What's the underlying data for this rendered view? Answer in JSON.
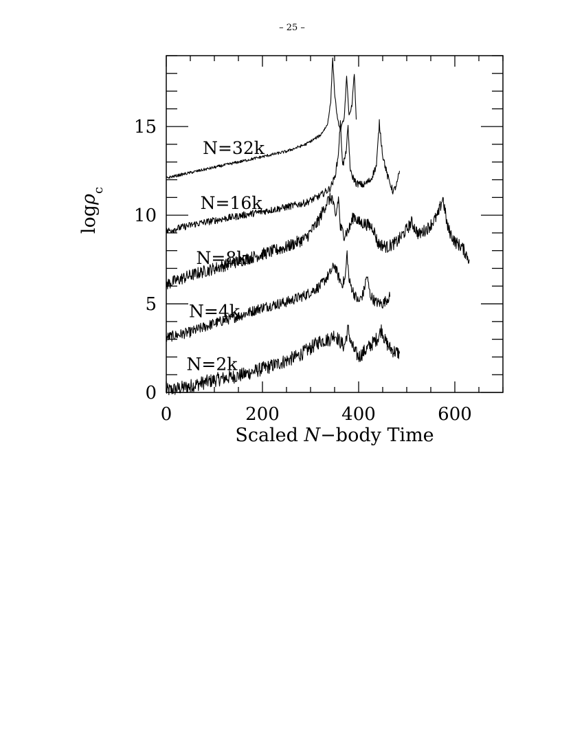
{
  "page": {
    "number": "– 25 –"
  },
  "chart_data": {
    "type": "line",
    "title": "",
    "xlabel_parts": [
      "Scaled ",
      "N",
      "−body Time"
    ],
    "ylabel_parts": [
      "log",
      "ρ",
      "c"
    ],
    "xlim": [
      0,
      700
    ],
    "ylim": [
      0,
      19
    ],
    "xticks": [
      0,
      200,
      400,
      600
    ],
    "yticks": [
      0,
      5,
      10,
      15
    ],
    "grid": false,
    "legend": "none (series labels drawn inline next to each curve)",
    "line_color": "#000000",
    "series": [
      {
        "name": "N=2k",
        "points": [
          [
            0,
            0.1
          ],
          [
            40,
            0.3
          ],
          [
            100,
            0.7
          ],
          [
            160,
            1.0
          ],
          [
            220,
            1.5
          ],
          [
            270,
            2.0
          ],
          [
            300,
            2.5
          ],
          [
            320,
            2.9
          ],
          [
            340,
            3.0
          ],
          [
            350,
            3.3
          ],
          [
            360,
            2.9
          ],
          [
            370,
            2.6
          ],
          [
            378,
            3.6
          ],
          [
            385,
            2.7
          ],
          [
            392,
            2.3
          ],
          [
            400,
            2.0
          ],
          [
            415,
            2.4
          ],
          [
            430,
            2.8
          ],
          [
            440,
            3.1
          ],
          [
            448,
            3.6
          ],
          [
            455,
            2.9
          ],
          [
            465,
            2.5
          ],
          [
            475,
            2.3
          ],
          [
            485,
            2.2
          ]
        ],
        "noise": 0.4
      },
      {
        "name": "N=4k",
        "points": [
          [
            0,
            3.1
          ],
          [
            50,
            3.4
          ],
          [
            100,
            3.9
          ],
          [
            150,
            4.3
          ],
          [
            200,
            4.8
          ],
          [
            250,
            5.1
          ],
          [
            290,
            5.5
          ],
          [
            320,
            6.0
          ],
          [
            340,
            6.7
          ],
          [
            350,
            7.2
          ],
          [
            357,
            6.6
          ],
          [
            365,
            6.1
          ],
          [
            372,
            6.4
          ],
          [
            376,
            7.9
          ],
          [
            380,
            6.3
          ],
          [
            390,
            5.6
          ],
          [
            400,
            5.1
          ],
          [
            410,
            5.6
          ],
          [
            417,
            6.6
          ],
          [
            424,
            5.5
          ],
          [
            435,
            5.1
          ],
          [
            450,
            5.0
          ],
          [
            460,
            5.3
          ],
          [
            465,
            5.4
          ]
        ],
        "noise": 0.3
      },
      {
        "name": "N=8k",
        "points": [
          [
            0,
            6.1
          ],
          [
            50,
            6.6
          ],
          [
            100,
            7.0
          ],
          [
            150,
            7.4
          ],
          [
            200,
            7.8
          ],
          [
            250,
            8.2
          ],
          [
            290,
            8.7
          ],
          [
            315,
            9.6
          ],
          [
            335,
            10.8
          ],
          [
            345,
            11.0
          ],
          [
            352,
            9.8
          ],
          [
            358,
            11.0
          ],
          [
            362,
            9.3
          ],
          [
            370,
            8.9
          ],
          [
            380,
            9.2
          ],
          [
            390,
            10.0
          ],
          [
            400,
            9.6
          ],
          [
            415,
            9.5
          ],
          [
            430,
            9.3
          ],
          [
            440,
            8.4
          ],
          [
            460,
            8.2
          ],
          [
            480,
            8.5
          ],
          [
            500,
            9.2
          ],
          [
            510,
            9.6
          ],
          [
            525,
            8.9
          ],
          [
            545,
            9.3
          ],
          [
            565,
            10.0
          ],
          [
            575,
            11.0
          ],
          [
            585,
            9.3
          ],
          [
            600,
            8.5
          ],
          [
            615,
            8.2
          ],
          [
            630,
            7.5
          ]
        ],
        "noise": 0.35
      },
      {
        "name": "N=16k",
        "points": [
          [
            0,
            9.1
          ],
          [
            60,
            9.5
          ],
          [
            120,
            9.8
          ],
          [
            180,
            10.1
          ],
          [
            240,
            10.4
          ],
          [
            290,
            10.7
          ],
          [
            320,
            11.1
          ],
          [
            340,
            11.5
          ],
          [
            350,
            12.1
          ],
          [
            357,
            13.2
          ],
          [
            362,
            15.2
          ],
          [
            367,
            12.8
          ],
          [
            373,
            13.4
          ],
          [
            378,
            14.9
          ],
          [
            383,
            12.4
          ],
          [
            395,
            11.8
          ],
          [
            410,
            11.7
          ],
          [
            425,
            12.0
          ],
          [
            437,
            12.8
          ],
          [
            443,
            15.2
          ],
          [
            450,
            13.4
          ],
          [
            460,
            12.2
          ],
          [
            472,
            11.3
          ],
          [
            480,
            11.8
          ],
          [
            485,
            12.5
          ]
        ],
        "noise": 0.2
      },
      {
        "name": "N=32k",
        "points": [
          [
            0,
            12.1
          ],
          [
            50,
            12.4
          ],
          [
            100,
            12.7
          ],
          [
            150,
            13.0
          ],
          [
            200,
            13.3
          ],
          [
            250,
            13.6
          ],
          [
            290,
            14.0
          ],
          [
            320,
            14.5
          ],
          [
            335,
            15.1
          ],
          [
            342,
            16.4
          ],
          [
            346,
            18.9
          ],
          [
            350,
            16.9
          ],
          [
            356,
            15.4
          ],
          [
            362,
            14.8
          ],
          [
            370,
            15.5
          ],
          [
            375,
            17.8
          ],
          [
            380,
            15.6
          ],
          [
            386,
            16.2
          ],
          [
            391,
            18.0
          ],
          [
            395,
            15.4
          ]
        ],
        "noise": 0.08
      }
    ],
    "series_labels": [
      {
        "text": "N=32k",
        "x": 140,
        "y": 13.8
      },
      {
        "text": "N=16k",
        "x": 135,
        "y": 10.7
      },
      {
        "text": "N=8k",
        "x": 115,
        "y": 7.6
      },
      {
        "text": "N=4k",
        "x": 100,
        "y": 4.6
      },
      {
        "text": "N=2k",
        "x": 95,
        "y": 1.6
      }
    ]
  }
}
